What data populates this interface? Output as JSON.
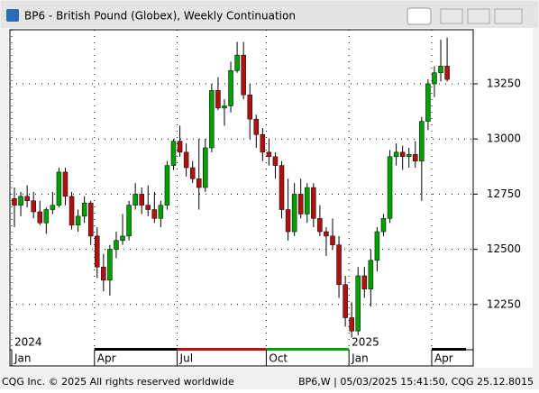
{
  "window_title": "BP6 - British Pound (Globex), Weekly Continuation",
  "footer_left": "CQG Inc. © 2025 All rights reserved worldwide",
  "footer_right": "BP6,W | 05/03/2025 15:41:50, CQG 25.12.8015",
  "chart_data": {
    "type": "candlestick",
    "categories": [
      "Jan",
      null,
      null,
      null,
      null,
      null,
      null,
      null,
      null,
      null,
      null,
      null,
      null,
      "Apr",
      null,
      null,
      null,
      null,
      null,
      null,
      null,
      null,
      null,
      null,
      null,
      null,
      "Jul",
      null,
      null,
      null,
      null,
      null,
      null,
      null,
      null,
      null,
      null,
      null,
      null,
      null,
      "Oct",
      null,
      null,
      null,
      null,
      null,
      null,
      null,
      null,
      null,
      null,
      null,
      null,
      "Jan",
      null,
      null,
      null,
      null,
      null,
      null,
      null,
      null,
      null,
      null,
      null,
      null,
      "Apr",
      null,
      null
    ],
    "year_labels": [
      "2024",
      "2025"
    ],
    "open": [
      12730,
      12700,
      12740,
      12720,
      12670,
      12620,
      12680,
      12700,
      12850,
      12740,
      12610,
      12650,
      12710,
      12560,
      12420,
      12360,
      12500,
      12540,
      12560,
      12700,
      12750,
      12700,
      12680,
      12640,
      12700,
      12880,
      12990,
      12940,
      12870,
      12820,
      12780,
      12960,
      13220,
      13140,
      13150,
      13310,
      13380,
      13200,
      13090,
      13020,
      12940,
      12920,
      12880,
      12680,
      12580,
      12750,
      12660,
      12780,
      12640,
      12580,
      12560,
      12520,
      12340,
      12190,
      12130,
      12380,
      12320,
      12450,
      12580,
      12640,
      12920,
      12940,
      12920,
      12930,
      12900,
      13080,
      13250,
      13300,
      13330
    ],
    "high": [
      12780,
      12760,
      12790,
      12760,
      12720,
      12690,
      12760,
      12870,
      12870,
      12760,
      12680,
      12740,
      12720,
      12600,
      12480,
      12520,
      12580,
      12660,
      12720,
      12800,
      12780,
      12790,
      12760,
      12720,
      12900,
      13000,
      13060,
      12980,
      12900,
      13000,
      13000,
      13250,
      13280,
      13180,
      13350,
      13440,
      13440,
      13250,
      13110,
      13050,
      13000,
      12940,
      12900,
      12820,
      12800,
      12820,
      12800,
      12800,
      12700,
      12600,
      12640,
      12560,
      12380,
      12260,
      12420,
      12420,
      12500,
      12600,
      12660,
      12950,
      12980,
      12970,
      12960,
      12990,
      13100,
      13270,
      13330,
      13450,
      13460
    ],
    "low": [
      12600,
      12650,
      12690,
      12640,
      12610,
      12570,
      12660,
      12690,
      12700,
      12590,
      12580,
      12620,
      12520,
      12370,
      12310,
      12290,
      12460,
      12520,
      12540,
      12680,
      12660,
      12650,
      12620,
      12600,
      12680,
      12860,
      12920,
      12830,
      12800,
      12680,
      12760,
      12940,
      13130,
      13060,
      13120,
      13300,
      13180,
      13000,
      12960,
      12900,
      12880,
      12820,
      12640,
      12540,
      12560,
      12640,
      12620,
      12600,
      12560,
      12470,
      12500,
      12280,
      12150,
      12100,
      12110,
      12280,
      12240,
      12400,
      12560,
      12620,
      12880,
      12860,
      12870,
      12870,
      12720,
      13040,
      13190,
      13260,
      13260
    ],
    "close": [
      12700,
      12740,
      12720,
      12670,
      12620,
      12680,
      12700,
      12850,
      12740,
      12610,
      12650,
      12710,
      12560,
      12420,
      12360,
      12500,
      12540,
      12560,
      12700,
      12750,
      12700,
      12680,
      12640,
      12700,
      12880,
      12990,
      12940,
      12870,
      12820,
      12780,
      12960,
      13220,
      13140,
      13150,
      13310,
      13380,
      13200,
      13090,
      13020,
      12940,
      12920,
      12880,
      12680,
      12580,
      12750,
      12660,
      12780,
      12640,
      12580,
      12560,
      12520,
      12340,
      12190,
      12130,
      12380,
      12320,
      12450,
      12580,
      12640,
      12920,
      12940,
      12920,
      12930,
      12900,
      13080,
      13250,
      13300,
      13330,
      13270
    ],
    "up_color": "#00a000",
    "down_color": "#b01010",
    "ylim": [
      12045,
      13495
    ],
    "yticks": [
      12250,
      12500,
      12750,
      13000,
      13250
    ],
    "grid": true
  }
}
